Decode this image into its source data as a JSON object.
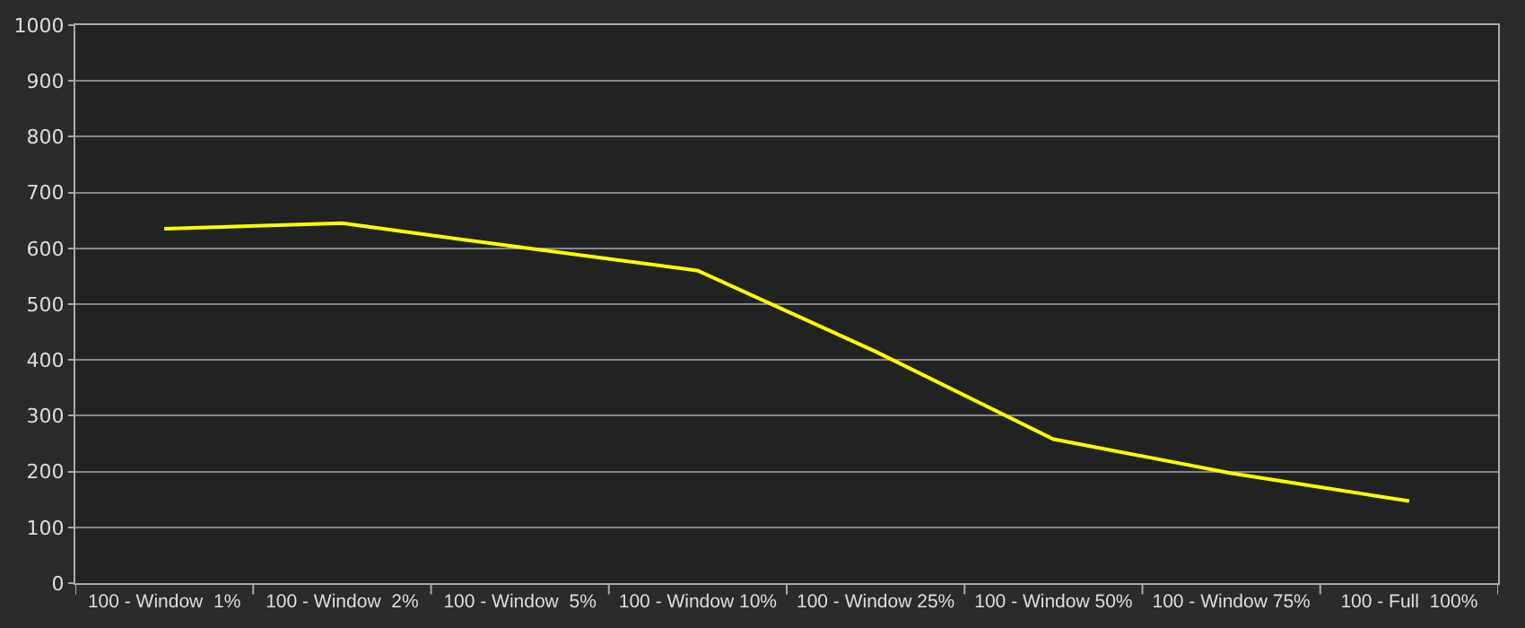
{
  "chart_data": {
    "type": "line",
    "categories": [
      "100 - Window  1%",
      "100 - Window  2%",
      "100 - Window  5%",
      "100 - Window 10%",
      "100 - Window 25%",
      "100 - Window 50%",
      "100 - Window 75%",
      "100 - Full  100%"
    ],
    "series": [
      {
        "color": "#ffff00",
        "values": [
          635,
          645,
          602,
          560,
          415,
          258,
          197,
          147
        ]
      }
    ],
    "ylim": [
      0,
      1000
    ],
    "yticks": [
      0,
      100,
      200,
      300,
      400,
      500,
      600,
      700,
      800,
      900,
      1000
    ],
    "grid": "y",
    "marker": "none",
    "line_style": "solid"
  }
}
